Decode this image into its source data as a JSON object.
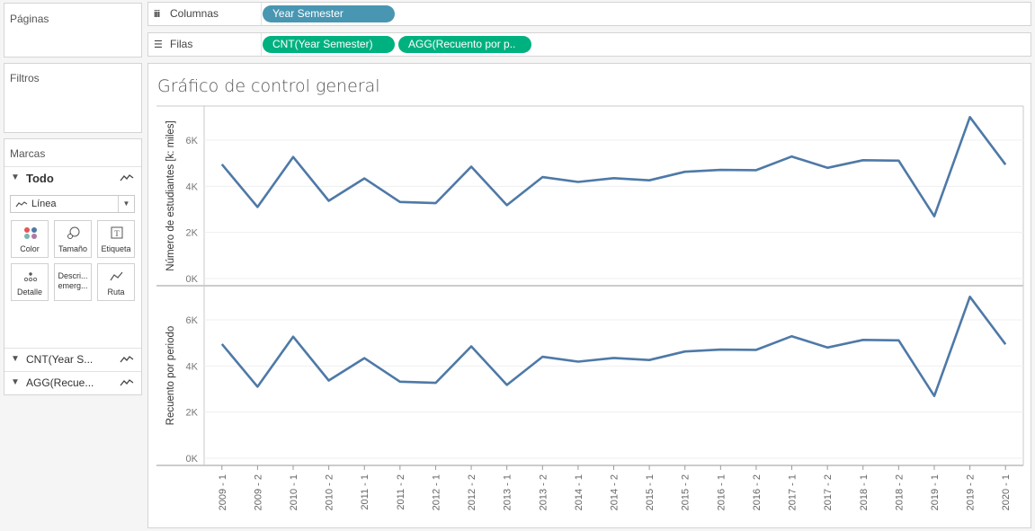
{
  "panels": {
    "pages": "Páginas",
    "filters": "Filtros",
    "marks": "Marcas"
  },
  "shelves": {
    "columns_label": "Columnas",
    "rows_label": "Filas",
    "columns_pill": "Year Semester",
    "rows_pill_1": "CNT(Year Semester)",
    "rows_pill_2": "AGG(Recuento por p.."
  },
  "marks": {
    "all_label": "Todo",
    "mark_type": "Línea",
    "tiles": {
      "color": "Color",
      "size": "Tamaño",
      "label": "Etiqueta",
      "detail": "Detalle",
      "tooltip_1": "Descri...",
      "tooltip_2": "emerg...",
      "path": "Ruta"
    },
    "measure_1": "CNT(Year S...",
    "measure_2": "AGG(Recue..."
  },
  "colors": {
    "line": "#4e79a7",
    "pill_blue": "#4996b2",
    "pill_green": "#00b180"
  },
  "chart_data": {
    "type": "line",
    "title": "Gráfico de control general",
    "categories": [
      "2009 - 1",
      "2009 - 2",
      "2010 - 1",
      "2010 - 2",
      "2011 - 1",
      "2011 - 2",
      "2012 - 1",
      "2012 - 2",
      "2013 - 1",
      "2013 - 2",
      "2014 - 1",
      "2014 - 2",
      "2015 - 1",
      "2015 - 2",
      "2016 - 1",
      "2016 - 2",
      "2017 - 1",
      "2017 - 2",
      "2018 - 1",
      "2018 - 2",
      "2019 - 1",
      "2019 - 2",
      "2020 - 1"
    ],
    "panes": [
      {
        "ylabel": "Número de estudiantes  [k: miles]",
        "yticks": [
          "0K",
          "2K",
          "4K",
          "6K"
        ],
        "ylim": [
          0,
          7000
        ],
        "values": [
          4950,
          3100,
          5270,
          3370,
          4340,
          3320,
          3270,
          4850,
          3180,
          4400,
          4190,
          4350,
          4260,
          4630,
          4710,
          4700,
          5290,
          4800,
          5130,
          5110,
          2700,
          7000,
          4940
        ]
      },
      {
        "ylabel": "Recuento por periodo",
        "yticks": [
          "0K",
          "2K",
          "4K",
          "6K"
        ],
        "ylim": [
          0,
          7000
        ],
        "values": [
          4950,
          3100,
          5270,
          3370,
          4340,
          3320,
          3270,
          4850,
          3180,
          4400,
          4190,
          4350,
          4260,
          4630,
          4710,
          4700,
          5290,
          4800,
          5130,
          5110,
          2700,
          7000,
          4940
        ]
      }
    ]
  }
}
